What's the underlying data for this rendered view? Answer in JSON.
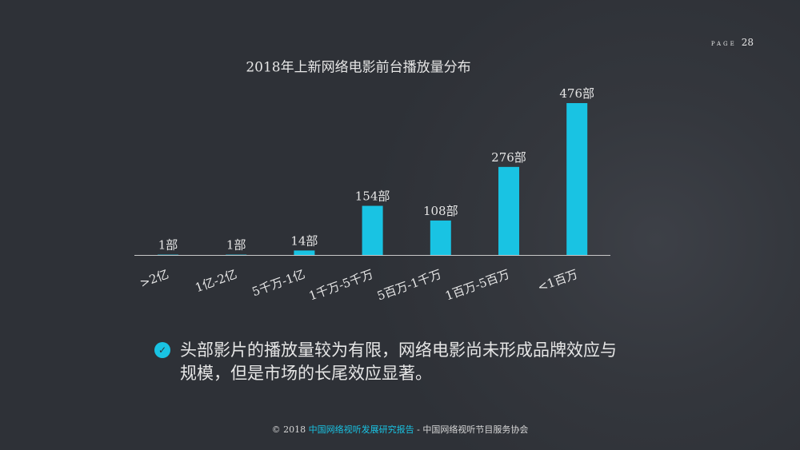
{
  "page": {
    "label": "PAGE",
    "number": "28"
  },
  "chart_data": {
    "type": "bar",
    "title": "2018年上新网络电影前台播放量分布",
    "categories": [
      ">2亿",
      "1亿-2亿",
      "5千万-1亿",
      "1千万-5千万",
      "5百万-1千万",
      "1百万-5百万",
      "<1百万"
    ],
    "values": [
      1,
      1,
      14,
      154,
      108,
      276,
      476
    ],
    "value_labels": [
      "1部",
      "1部",
      "14部",
      "154部",
      "108部",
      "276部",
      "476部"
    ],
    "color": "#19c3e3"
  },
  "bullet": "头部影片的播放量较为有限，网络电影尚未形成品牌效应与规模，但是市场的长尾效应显著。",
  "footer": {
    "prefix": "© 2018",
    "highlight": "中国网络视听发展研究报告",
    "suffix": "- 中国网络视听节目服务协会"
  }
}
